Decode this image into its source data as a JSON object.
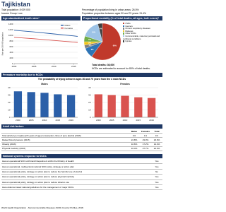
{
  "header": {
    "title": "Tajikistan",
    "total_population": "Total population: 8 009 000",
    "income_group": "Income Group: Low",
    "urban": "Percentage of population living in urban areas: 26.5%",
    "aged": "Population proportion between ages 30 and 70 years: 31.4%"
  },
  "sections": {
    "premature": "Premature mortality due to NCDs",
    "premature_sub": "The probability of dying between ages 30 and 70 years from the 4 main NCDs",
    "risk": "Adult risk factors",
    "response": "National systems response to NCDs"
  },
  "chart_data": [
    {
      "type": "line",
      "title": "Age-standardized death rates*",
      "ylabel": "Rate per 100 000 population",
      "x": [
        2000,
        2005,
        2010,
        2015,
        2016
      ],
      "xlim": [
        2000,
        2016
      ],
      "xticks": [
        2000,
        2005,
        2010,
        2015
      ],
      "ylim": [
        0,
        1400
      ],
      "yticks": [
        0,
        200,
        400,
        600,
        800,
        1000,
        1200,
        1400
      ],
      "grid": true,
      "series": [
        {
          "name": "Males",
          "color": "#2b5fa8",
          "values": [
            1180,
            1120,
            1050,
            980,
            960
          ]
        },
        {
          "name": "Females",
          "color": "#d9534f",
          "values": [
            930,
            880,
            820,
            760,
            750
          ]
        }
      ]
    },
    {
      "type": "pie",
      "title": "Proportional mortality (% of total deaths, all ages, both sexes)*",
      "categories": [
        "CVDs",
        "Cancers",
        "Chronic respiratory diseases",
        "Diabetes",
        "Other NCDs",
        "Communicable, maternal, perinatal and nutritional conditions",
        "Injuries"
      ],
      "values": [
        60,
        9,
        3,
        3,
        5,
        16,
        4
      ],
      "value_labels": [
        "60%",
        "9%",
        "3%",
        "3%",
        "5%",
        "16%",
        "4%"
      ],
      "colors": [
        "#c0392b",
        "#2e75b6",
        "#7f7f7f",
        "#f0c419",
        "#70ad47",
        "#9dc3e6",
        "#404040"
      ],
      "notes": [
        "Total deaths: 36,000",
        "NCDs are estimated to account for 80% of total deaths."
      ]
    },
    {
      "type": "bar",
      "title": "Males",
      "categories": [
        "2000",
        "2005",
        "2010",
        "2015",
        "2016"
      ],
      "values": [
        35,
        34,
        33,
        31,
        30
      ],
      "color": "#2b5fa8",
      "ylim": [
        0,
        40
      ],
      "yticks": [
        0,
        10,
        20,
        30,
        40
      ]
    },
    {
      "type": "bar",
      "title": "Females",
      "categories": [
        "2000",
        "2005",
        "2010",
        "2015",
        "2016"
      ],
      "values": [
        31,
        30,
        29,
        27,
        26
      ],
      "color": "#d9534f",
      "ylim": [
        0,
        40
      ],
      "yticks": [
        0,
        10,
        20,
        30,
        40
      ]
    }
  ],
  "risk_table": {
    "columns": [
      "Males",
      "Females",
      "Total"
    ],
    "rows": [
      [
        "Total alcohol per capita (≥15 years of age) consumption, litres of pure alcohol (2016)",
        "0.6",
        "0.1",
        "0.3"
      ],
      [
        "Raised blood pressure (2015)",
        "24.8%",
        "23.0%",
        "23.9%"
      ],
      [
        "Obesity (2016)",
        "10.6%",
        "17.2%",
        "14.2%"
      ],
      [
        "Physical inactivity (2016)",
        "16.4%",
        "27.7%",
        "22.3%"
      ]
    ]
  },
  "response_table": {
    "rows": [
      [
        "Has an operational NCD unit/branch/department within the Ministry of Health",
        "Yes"
      ],
      [
        "Has an operational, multisectoral national NCD policy, strategy or action plan",
        "Yes"
      ],
      [
        "Has an operational policy, strategy or action plan to reduce the harmful use of alcohol",
        "No"
      ],
      [
        "Has an operational policy, strategy or action plan to reduce physical inactivity",
        "Yes"
      ],
      [
        "Has an operational policy, strategy or action plan to reduce tobacco use",
        "Yes"
      ],
      [
        "Has evidence-based national guidelines for the management of major NCDs",
        "Yes"
      ]
    ]
  },
  "footer": "World Health Organization - Noncommunicable Diseases (NCD) Country Profiles, 2018."
}
